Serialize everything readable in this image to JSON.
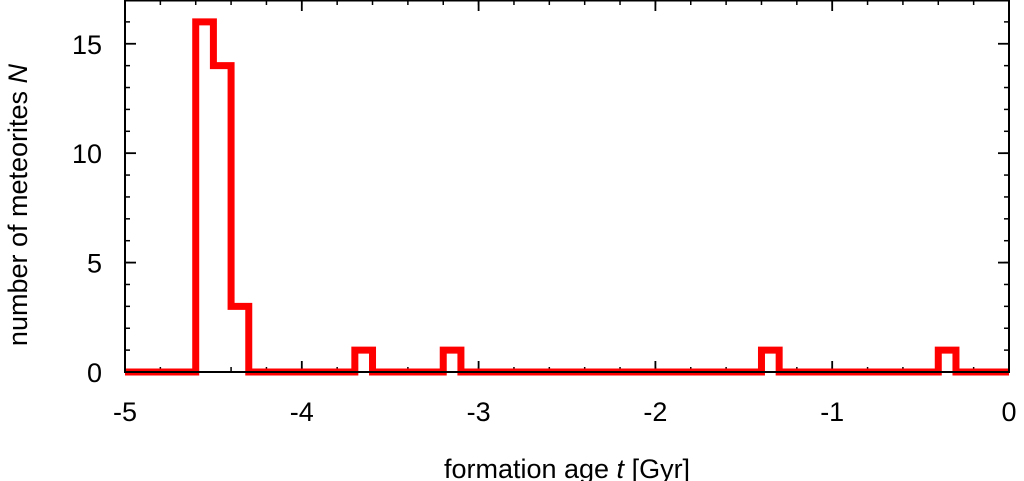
{
  "chart_data": {
    "type": "histogram",
    "xlabel_main": "formation age ",
    "xlabel_var": "t",
    "xlabel_unit": " [Gyr]",
    "ylabel_main": "number of meteorites ",
    "ylabel_var": "N",
    "xlim": [
      -5,
      0
    ],
    "ylim": [
      0,
      17
    ],
    "x_ticks": [
      -5,
      -4,
      -3,
      -2,
      -1,
      0
    ],
    "x_tick_labels": [
      "-5",
      "-4",
      "-3",
      "-2",
      "-1",
      "0"
    ],
    "y_ticks": [
      0,
      5,
      10,
      15
    ],
    "y_tick_labels": [
      "0",
      "5",
      "10",
      "15"
    ],
    "bin_width": 0.1,
    "bins": [
      {
        "x0": -4.6,
        "x1": -4.5,
        "count": 16
      },
      {
        "x0": -4.5,
        "x1": -4.4,
        "count": 14
      },
      {
        "x0": -4.4,
        "x1": -4.3,
        "count": 3
      },
      {
        "x0": -3.7,
        "x1": -3.6,
        "count": 1
      },
      {
        "x0": -3.2,
        "x1": -3.1,
        "count": 1
      },
      {
        "x0": -1.4,
        "x1": -1.3,
        "count": 1
      },
      {
        "x0": -0.4,
        "x1": -0.3,
        "count": 1
      }
    ],
    "line_color": "#ff0000",
    "grid": false
  }
}
